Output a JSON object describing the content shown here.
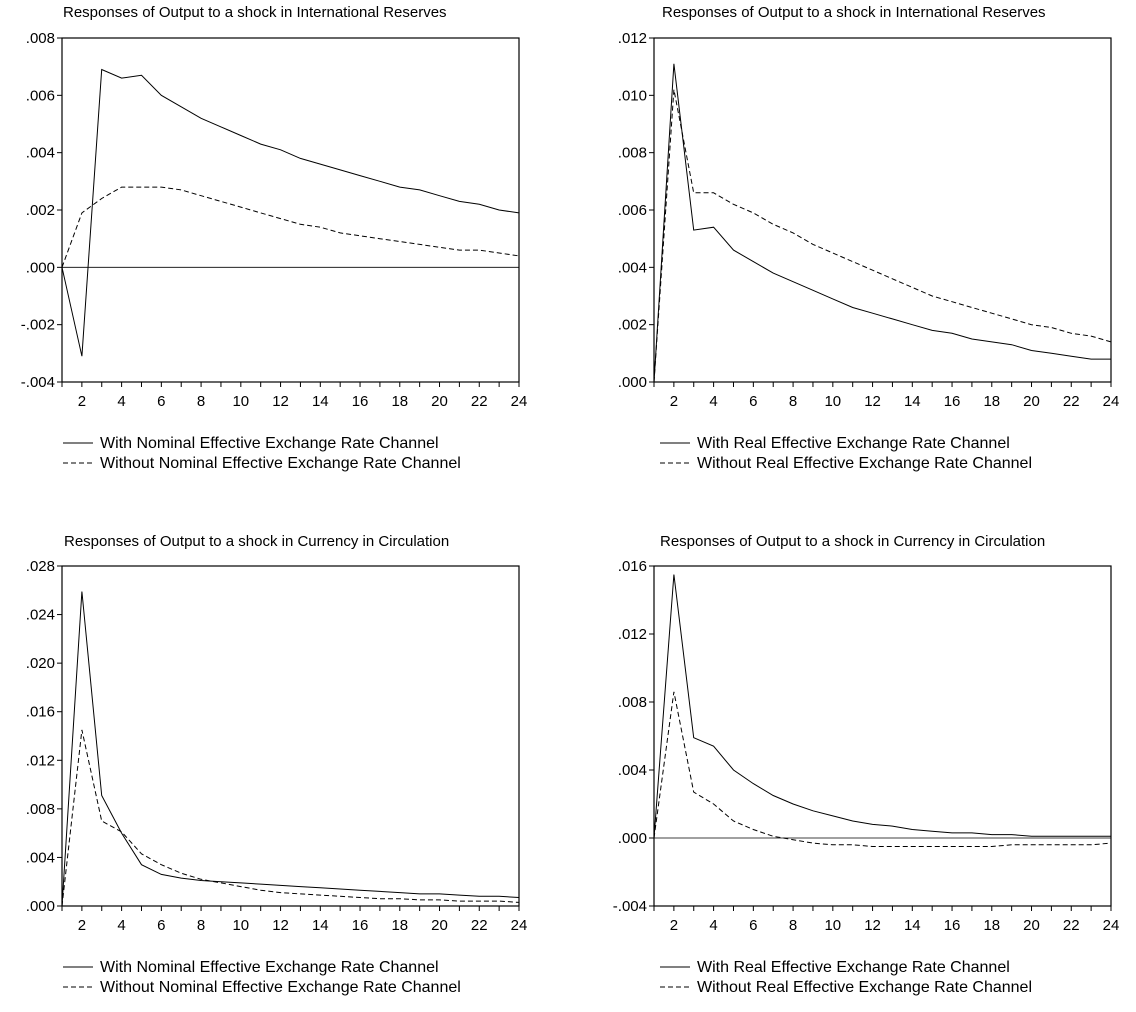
{
  "chart_data": [
    {
      "type": "line",
      "title": "Responses of Output to a shock in International Reserves",
      "x": [
        1,
        2,
        3,
        4,
        5,
        6,
        7,
        8,
        9,
        10,
        11,
        12,
        13,
        14,
        15,
        16,
        17,
        18,
        19,
        20,
        21,
        22,
        23,
        24
      ],
      "xticks": [
        "2",
        "4",
        "6",
        "8",
        "10",
        "12",
        "14",
        "16",
        "18",
        "20",
        "22",
        "24"
      ],
      "xlim": [
        1,
        24
      ],
      "ylim": [
        -0.004,
        0.008
      ],
      "yticks": [
        "-.004",
        "-.002",
        ".000",
        ".002",
        ".004",
        ".006",
        ".008"
      ],
      "zero_line": true,
      "series": [
        {
          "name": "With Nominal Effective Exchange Rate Channel",
          "style": "solid",
          "values": [
            0.0,
            -0.0031,
            0.0069,
            0.0066,
            0.0067,
            0.006,
            0.0056,
            0.0052,
            0.0049,
            0.0046,
            0.0043,
            0.0041,
            0.0038,
            0.0036,
            0.0034,
            0.0032,
            0.003,
            0.0028,
            0.0027,
            0.0025,
            0.0023,
            0.0022,
            0.002,
            0.0019
          ]
        },
        {
          "name": "Without Nominal Effective Exchange Rate Channel",
          "style": "dashed",
          "values": [
            0.0,
            0.0019,
            0.0024,
            0.0028,
            0.0028,
            0.0028,
            0.0027,
            0.0025,
            0.0023,
            0.0021,
            0.0019,
            0.0017,
            0.0015,
            0.0014,
            0.0012,
            0.0011,
            0.001,
            0.0009,
            0.0008,
            0.0007,
            0.0006,
            0.0006,
            0.0005,
            0.0004
          ]
        }
      ]
    },
    {
      "type": "line",
      "title": "Responses of Output to a shock in International Reserves",
      "x": [
        1,
        2,
        3,
        4,
        5,
        6,
        7,
        8,
        9,
        10,
        11,
        12,
        13,
        14,
        15,
        16,
        17,
        18,
        19,
        20,
        21,
        22,
        23,
        24
      ],
      "xticks": [
        "2",
        "4",
        "6",
        "8",
        "10",
        "12",
        "14",
        "16",
        "18",
        "20",
        "22",
        "24"
      ],
      "xlim": [
        1,
        24
      ],
      "ylim": [
        0.0,
        0.012
      ],
      "yticks": [
        ".000",
        ".002",
        ".004",
        ".006",
        ".008",
        ".010",
        ".012"
      ],
      "zero_line": false,
      "series": [
        {
          "name": "With Real Effective Exchange Rate Channel",
          "style": "solid",
          "values": [
            0.0,
            0.0111,
            0.0053,
            0.0054,
            0.0046,
            0.0042,
            0.0038,
            0.0035,
            0.0032,
            0.0029,
            0.0026,
            0.0024,
            0.0022,
            0.002,
            0.0018,
            0.0017,
            0.0015,
            0.0014,
            0.0013,
            0.0011,
            0.001,
            0.0009,
            0.0008,
            0.0008
          ]
        },
        {
          "name": "Without Real Effective Exchange Rate Channel",
          "style": "dashed",
          "values": [
            0.0,
            0.0102,
            0.0066,
            0.0066,
            0.0062,
            0.0059,
            0.0055,
            0.0052,
            0.0048,
            0.0045,
            0.0042,
            0.0039,
            0.0036,
            0.0033,
            0.003,
            0.0028,
            0.0026,
            0.0024,
            0.0022,
            0.002,
            0.0019,
            0.0017,
            0.0016,
            0.0014
          ]
        }
      ]
    },
    {
      "type": "line",
      "title": "Responses of Output to a shock in Currency in Circulation",
      "x": [
        1,
        2,
        3,
        4,
        5,
        6,
        7,
        8,
        9,
        10,
        11,
        12,
        13,
        14,
        15,
        16,
        17,
        18,
        19,
        20,
        21,
        22,
        23,
        24
      ],
      "xticks": [
        "2",
        "4",
        "6",
        "8",
        "10",
        "12",
        "14",
        "16",
        "18",
        "20",
        "22",
        "24"
      ],
      "xlim": [
        1,
        24
      ],
      "ylim": [
        0.0,
        0.028
      ],
      "yticks": [
        ".000",
        ".004",
        ".008",
        ".012",
        ".016",
        ".020",
        ".024",
        ".028"
      ],
      "zero_line": false,
      "series": [
        {
          "name": "With Nominal Effective Exchange Rate Channel",
          "style": "solid",
          "values": [
            0.0,
            0.0259,
            0.0091,
            0.006,
            0.0034,
            0.0026,
            0.0023,
            0.0021,
            0.002,
            0.0019,
            0.0018,
            0.0017,
            0.0016,
            0.0015,
            0.0014,
            0.0013,
            0.0012,
            0.0011,
            0.001,
            0.001,
            0.0009,
            0.0008,
            0.0008,
            0.0007
          ]
        },
        {
          "name": "Without Nominal Effective Exchange Rate Channel",
          "style": "dashed",
          "values": [
            0.0,
            0.0145,
            0.007,
            0.0061,
            0.0043,
            0.0034,
            0.0027,
            0.0022,
            0.0019,
            0.0016,
            0.0013,
            0.0011,
            0.001,
            0.0009,
            0.0008,
            0.0007,
            0.0006,
            0.0006,
            0.0005,
            0.0005,
            0.0004,
            0.0004,
            0.0004,
            0.0003
          ]
        }
      ]
    },
    {
      "type": "line",
      "title": "Responses of Output to a shock in Currency in Circulation",
      "x": [
        1,
        2,
        3,
        4,
        5,
        6,
        7,
        8,
        9,
        10,
        11,
        12,
        13,
        14,
        15,
        16,
        17,
        18,
        19,
        20,
        21,
        22,
        23,
        24
      ],
      "xticks": [
        "2",
        "4",
        "6",
        "8",
        "10",
        "12",
        "14",
        "16",
        "18",
        "20",
        "22",
        "24"
      ],
      "xlim": [
        1,
        24
      ],
      "ylim": [
        -0.004,
        0.016
      ],
      "yticks": [
        "-.004",
        ".000",
        ".004",
        ".008",
        ".012",
        ".016"
      ],
      "zero_line": true,
      "series": [
        {
          "name": "With Real Effective Exchange Rate Channel",
          "style": "solid",
          "values": [
            0.0,
            0.0155,
            0.0059,
            0.0054,
            0.004,
            0.0032,
            0.0025,
            0.002,
            0.0016,
            0.0013,
            0.001,
            0.0008,
            0.0007,
            0.0005,
            0.0004,
            0.0003,
            0.0003,
            0.0002,
            0.0002,
            0.0001,
            0.0001,
            0.0001,
            0.0001,
            0.0001
          ]
        },
        {
          "name": "Without Real Effective Exchange Rate Channel",
          "style": "dashed",
          "values": [
            0.0,
            0.0086,
            0.0027,
            0.002,
            0.001,
            0.0005,
            0.0001,
            -0.0001,
            -0.0003,
            -0.0004,
            -0.0004,
            -0.0005,
            -0.0005,
            -0.0005,
            -0.0005,
            -0.0005,
            -0.0005,
            -0.0005,
            -0.0004,
            -0.0004,
            -0.0004,
            -0.0004,
            -0.0004,
            -0.0003
          ]
        }
      ]
    }
  ]
}
